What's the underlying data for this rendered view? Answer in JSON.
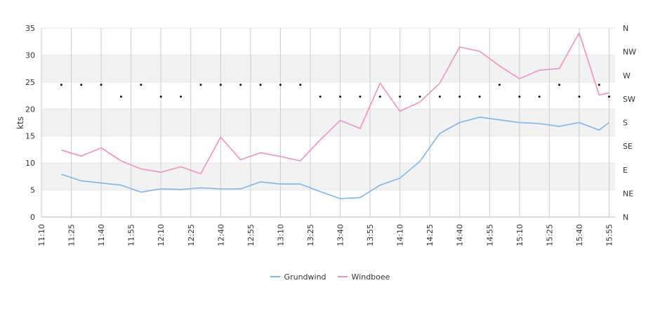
{
  "chart_data": {
    "type": "line",
    "ylabel": "kts",
    "ylim": [
      0,
      35
    ],
    "yticks": [
      "0",
      "5",
      "10",
      "15",
      "20",
      "25",
      "30",
      "35"
    ],
    "y2ticks": [
      "N",
      "NE",
      "E",
      "SE",
      "S",
      "SW",
      "W",
      "NW",
      "N"
    ],
    "xlim_minutes": [
      670,
      958
    ],
    "xticks": [
      {
        "t": 670,
        "label": "11:10"
      },
      {
        "t": 685,
        "label": "11:25"
      },
      {
        "t": 700,
        "label": "11:40"
      },
      {
        "t": 715,
        "label": "11:55"
      },
      {
        "t": 730,
        "label": "12:10"
      },
      {
        "t": 745,
        "label": "12:25"
      },
      {
        "t": 760,
        "label": "12:40"
      },
      {
        "t": 775,
        "label": "12:55"
      },
      {
        "t": 790,
        "label": "13:10"
      },
      {
        "t": 805,
        "label": "13:25"
      },
      {
        "t": 820,
        "label": "13:40"
      },
      {
        "t": 835,
        "label": "13:55"
      },
      {
        "t": 850,
        "label": "14:10"
      },
      {
        "t": 865,
        "label": "14:25"
      },
      {
        "t": 880,
        "label": "14:40"
      },
      {
        "t": 895,
        "label": "14:55"
      },
      {
        "t": 910,
        "label": "15:10"
      },
      {
        "t": 925,
        "label": "15:25"
      },
      {
        "t": 940,
        "label": "15:40"
      },
      {
        "t": 955,
        "label": "15:55"
      }
    ],
    "x": [
      "11:20",
      "11:30",
      "11:40",
      "11:50",
      "12:00",
      "12:10",
      "12:20",
      "12:30",
      "12:40",
      "12:50",
      "13:00",
      "13:10",
      "13:20",
      "13:30",
      "13:40",
      "13:50",
      "14:00",
      "14:10",
      "14:20",
      "14:30",
      "14:40",
      "14:50",
      "15:00",
      "15:10",
      "15:20",
      "15:30",
      "15:40",
      "15:50",
      "15:55"
    ],
    "series": [
      {
        "name": "Grundwind",
        "color": "#7cb5ec",
        "values": [
          7.9,
          6.7,
          6.3,
          5.9,
          4.6,
          5.2,
          5.1,
          5.4,
          5.2,
          5.2,
          6.5,
          6.1,
          6.1,
          4.7,
          3.4,
          3.6,
          5.9,
          7.2,
          10.3,
          15.5,
          17.5,
          18.5,
          18.0,
          17.5,
          17.3,
          16.8,
          17.5,
          16.1,
          17.5
        ]
      },
      {
        "name": "Windboee",
        "color": "#f18fc4",
        "values": [
          12.4,
          11.3,
          12.8,
          10.4,
          8.9,
          8.3,
          9.3,
          8.0,
          14.8,
          10.6,
          11.9,
          11.2,
          10.4,
          14.3,
          17.9,
          16.4,
          24.8,
          19.6,
          21.3,
          24.8,
          31.5,
          30.7,
          28.0,
          25.6,
          27.2,
          27.5,
          34.1,
          22.6,
          23.0
        ]
      }
    ],
    "direction_dots": [
      {
        "x": "11:20",
        "y": 24.5
      },
      {
        "x": "11:30",
        "y": 24.5
      },
      {
        "x": "11:40",
        "y": 24.5
      },
      {
        "x": "11:50",
        "y": 22.3
      },
      {
        "x": "12:00",
        "y": 24.5
      },
      {
        "x": "12:10",
        "y": 22.3
      },
      {
        "x": "12:20",
        "y": 22.3
      },
      {
        "x": "12:30",
        "y": 24.5
      },
      {
        "x": "12:40",
        "y": 24.5
      },
      {
        "x": "12:50",
        "y": 24.5
      },
      {
        "x": "13:00",
        "y": 24.5
      },
      {
        "x": "13:10",
        "y": 24.5
      },
      {
        "x": "13:20",
        "y": 24.5
      },
      {
        "x": "13:30",
        "y": 22.3
      },
      {
        "x": "13:40",
        "y": 22.3
      },
      {
        "x": "13:50",
        "y": 22.3
      },
      {
        "x": "14:00",
        "y": 22.3
      },
      {
        "x": "14:10",
        "y": 22.3
      },
      {
        "x": "14:20",
        "y": 22.3
      },
      {
        "x": "14:30",
        "y": 22.3
      },
      {
        "x": "14:40",
        "y": 22.3
      },
      {
        "x": "14:50",
        "y": 22.3
      },
      {
        "x": "15:00",
        "y": 24.5
      },
      {
        "x": "15:10",
        "y": 22.3
      },
      {
        "x": "15:20",
        "y": 22.3
      },
      {
        "x": "15:30",
        "y": 24.5
      },
      {
        "x": "15:40",
        "y": 22.3
      },
      {
        "x": "15:50",
        "y": 24.5
      },
      {
        "x": "15:55",
        "y": 22.3
      }
    ],
    "band_ranges": [
      [
        5,
        10
      ],
      [
        15,
        20
      ],
      [
        25,
        30
      ]
    ],
    "band_color": "#f2f2f2",
    "grid": true,
    "legend_position": "bottom-center"
  }
}
